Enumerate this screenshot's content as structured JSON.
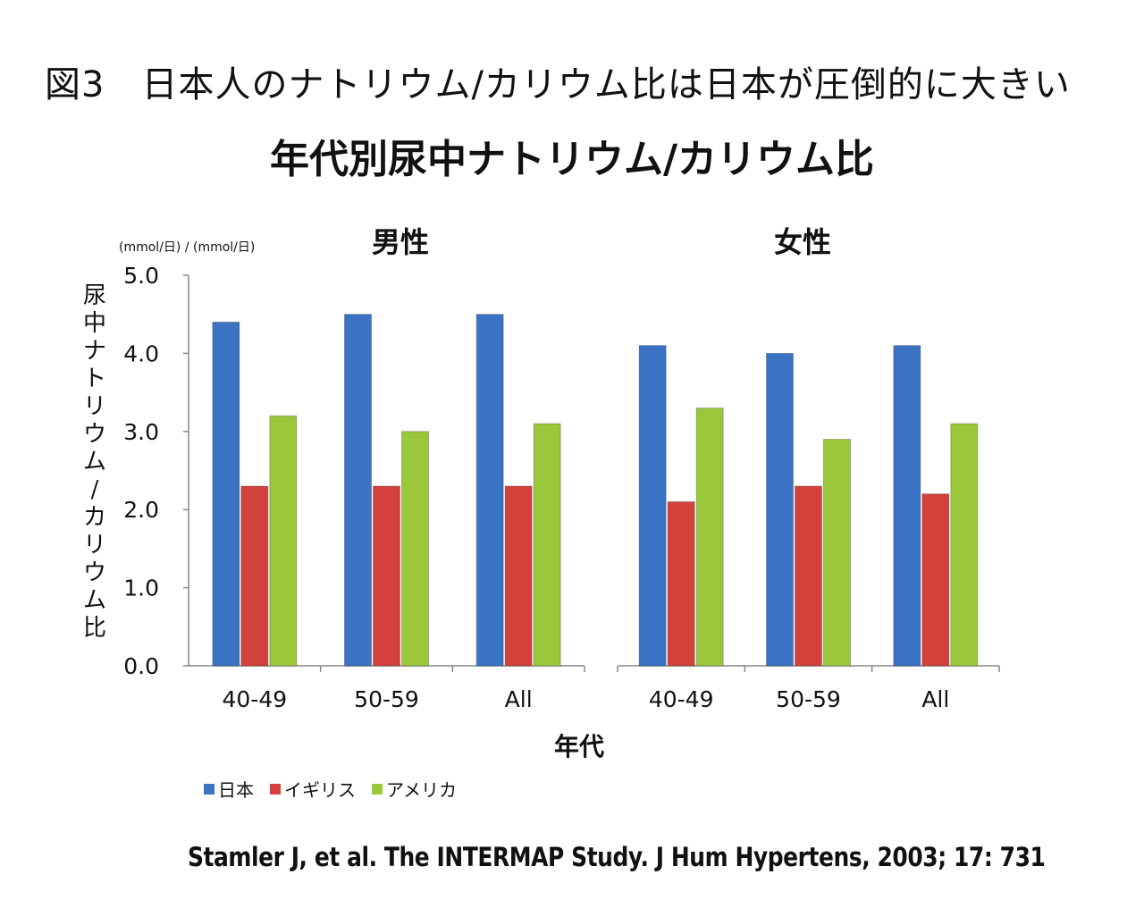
{
  "figure_title": "図3　日本人のナトリウム/カリウム比は日本が圧倒的に大きい",
  "chart_data": {
    "type": "bar",
    "title": "年代別尿中ナトリウム/カリウム比",
    "ylabel": "尿中ナトリウム/カリウム比",
    "yunits": "(mmol/日) / (mmol/日)",
    "xlabel": "年代",
    "ylim": [
      0,
      5
    ],
    "yticks": [
      "0.0",
      "1.0",
      "2.0",
      "3.0",
      "4.0",
      "5.0"
    ],
    "grid": false,
    "legend_position": "bottom-left",
    "panels": [
      {
        "title": "男性",
        "categories": [
          "40-49",
          "50-59",
          "All"
        ],
        "series": [
          {
            "name": "日本",
            "values": [
              4.4,
              4.5,
              4.5
            ]
          },
          {
            "name": "イギリス",
            "values": [
              2.3,
              2.3,
              2.3
            ]
          },
          {
            "name": "アメリカ",
            "values": [
              3.2,
              3.0,
              3.1
            ]
          }
        ]
      },
      {
        "title": "女性",
        "categories": [
          "40-49",
          "50-59",
          "All"
        ],
        "series": [
          {
            "name": "日本",
            "values": [
              4.1,
              4.0,
              4.1
            ]
          },
          {
            "name": "イギリス",
            "values": [
              2.1,
              2.3,
              2.2
            ]
          },
          {
            "name": "アメリカ",
            "values": [
              3.3,
              2.9,
              3.1
            ]
          }
        ]
      }
    ],
    "colors": {
      "日本": "#3a73c4",
      "イギリス": "#d2413a",
      "アメリカ": "#9bc83a"
    }
  },
  "legend": [
    {
      "label": "日本",
      "color": "#3a73c4"
    },
    {
      "label": "イギリス",
      "color": "#d2413a"
    },
    {
      "label": "アメリカ",
      "color": "#9bc83a"
    }
  ],
  "citation": "Stamler J, et al. The INTERMAP Study. J Hum Hypertens, 2003; 17: 731"
}
